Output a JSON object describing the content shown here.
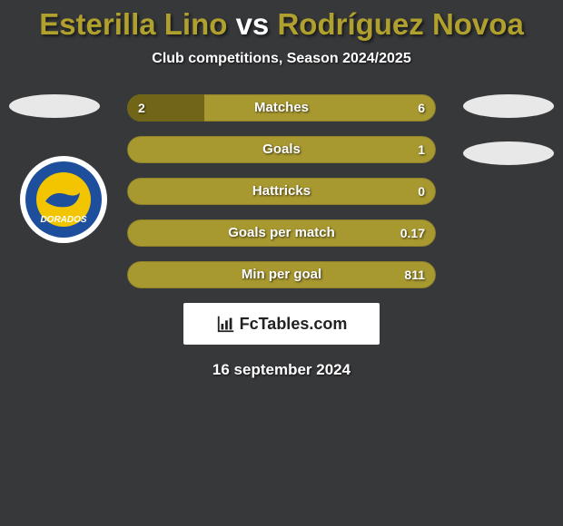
{
  "title": {
    "player1": "Esterilla Lino",
    "vs": " vs ",
    "player2": "Rodríguez Novoa",
    "color_player": "#b0a02e",
    "color_vs": "#ffffff"
  },
  "subtitle": "Club competitions, Season 2024/2025",
  "bars": {
    "track_color": "#a89830",
    "fill_color": "#716617",
    "border_color": "#8f822a",
    "rows": [
      {
        "label": "Matches",
        "left": "2",
        "right": "6",
        "fill_pct": 25
      },
      {
        "label": "Goals",
        "left": "",
        "right": "1",
        "fill_pct": 0
      },
      {
        "label": "Hattricks",
        "left": "",
        "right": "0",
        "fill_pct": 0
      },
      {
        "label": "Goals per match",
        "left": "",
        "right": "0.17",
        "fill_pct": 0
      },
      {
        "label": "Min per goal",
        "left": "",
        "right": "811",
        "fill_pct": 0
      }
    ]
  },
  "badge": {
    "outer": "#ffffff",
    "ring": "#1d4f9c",
    "inner": "#f2c500",
    "text": "DORADOS",
    "text_color": "#ffffff"
  },
  "logo": {
    "text": "FcTables.com",
    "icon_color": "#222222"
  },
  "date": "16 september 2024",
  "background": "#37383a"
}
